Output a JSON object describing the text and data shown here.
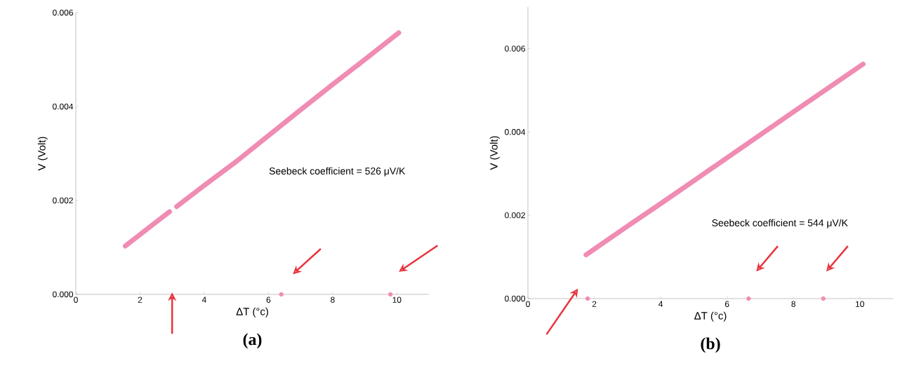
{
  "chart_data": [
    {
      "type": "line",
      "title": "(a)",
      "xlabel": "ΔT (°c)",
      "ylabel": "V (Volt)",
      "annotations": [
        "Seebeck coefficient = 526 μV/K"
      ],
      "series": [
        {
          "color": "#f08cb4",
          "x": [
            1.54,
            2.2,
            2.92,
            3.03,
            3.14,
            4,
            5,
            6,
            7,
            8,
            9,
            10.06
          ],
          "values": [
            0.00103,
            0.00138,
            0.00176,
            null,
            0.00187,
            0.00232,
            0.00283,
            0.00338,
            0.00393,
            0.00447,
            0.005,
            0.00557
          ]
        },
        {
          "type": "scatter",
          "color": "#f08cb4",
          "x": [
            6.4,
            9.8
          ],
          "values": [
            0,
            0
          ]
        }
      ],
      "xlim": [
        0,
        11
      ],
      "ylim": [
        0,
        0.006
      ],
      "xticks": [
        0,
        2,
        4,
        6,
        8,
        10
      ],
      "yticks": [
        {
          "value": 0,
          "label": "0.000"
        },
        {
          "value": 0.002,
          "label": "0.002"
        },
        {
          "value": 0.004,
          "label": "0.004"
        },
        {
          "value": 0.006,
          "label": "0.006"
        }
      ]
    },
    {
      "type": "line",
      "title": "(b)",
      "xlabel": "ΔT (°c)",
      "ylabel": "V (Volt)",
      "annotations": [
        "Seebeck coefficient = 544 μV/K"
      ],
      "series": [
        {
          "color": "#f08cb4",
          "x": [
            1.75,
            2,
            3,
            4,
            5,
            6,
            7,
            8,
            9,
            10.1
          ],
          "values": [
            0.00105,
            0.00119,
            0.00174,
            0.00228,
            0.00283,
            0.00338,
            0.00393,
            0.00448,
            0.00503,
            0.00563
          ]
        },
        {
          "type": "scatter",
          "color": "#f08cb4",
          "x": [
            1.8,
            6.65,
            8.9
          ],
          "values": [
            0,
            0,
            0
          ]
        }
      ],
      "xlim": [
        0,
        11
      ],
      "ylim": [
        0,
        0.007
      ],
      "xticks": [
        0,
        2,
        4,
        6,
        8,
        10
      ],
      "yticks": [
        {
          "value": 0,
          "label": "0.000"
        },
        {
          "value": 0.002,
          "label": "0.002"
        },
        {
          "value": 0.004,
          "label": "0.004"
        },
        {
          "value": 0.006,
          "label": "0.006"
        }
      ]
    }
  ]
}
